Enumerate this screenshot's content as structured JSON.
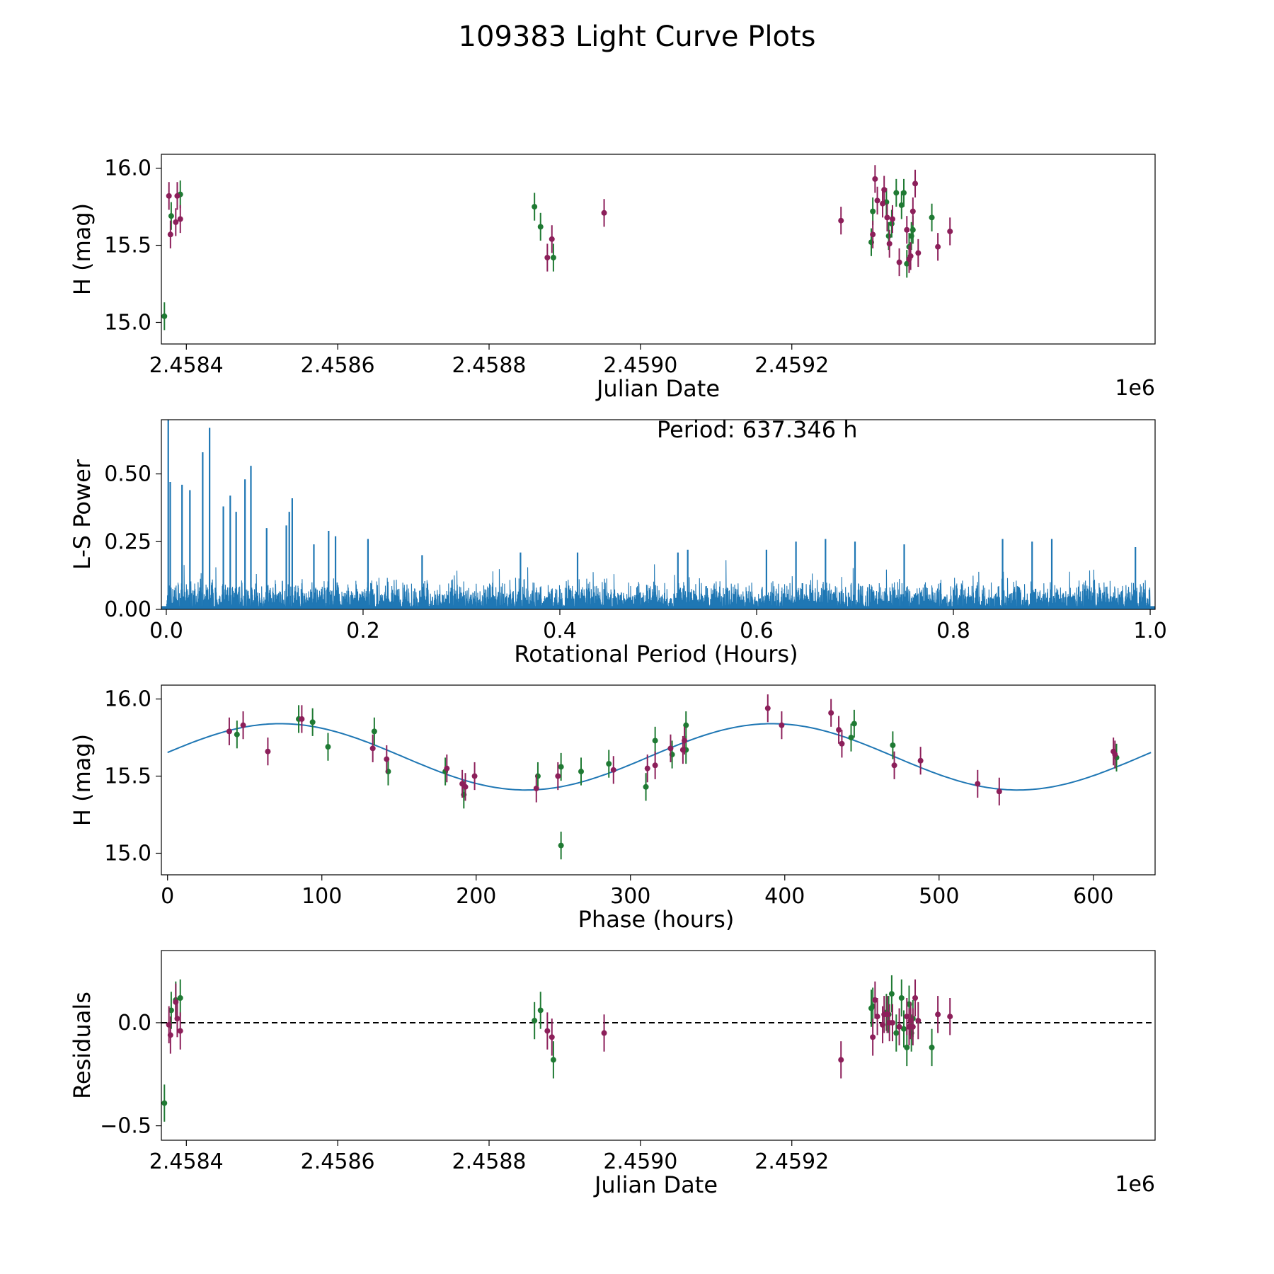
{
  "figure_title": "109383 Light Curve Plots",
  "colors": {
    "green": "#1f7a33",
    "magenta": "#8c1f5a",
    "blue": "#1f77b4",
    "axis": "#000000"
  },
  "chart_data": [
    {
      "id": "raw",
      "type": "scatter",
      "title": "",
      "xlabel": "Julian Date",
      "ylabel": "H (mag)",
      "offset_text": "1e6",
      "xlim": [
        2458367,
        2459680
      ],
      "ylim": [
        14.86,
        16.09
      ],
      "xticks": [
        2458400,
        2458600,
        2458800,
        2459000,
        2459200
      ],
      "xtick_labels": [
        "2.4584",
        "2.4586",
        "2.4588",
        "2.4590",
        "2.4592"
      ],
      "yticks": [
        15.0,
        15.5,
        16.0
      ],
      "ytick_labels": [
        "15.0",
        "15.5",
        "16.0"
      ],
      "error_bar": 0.17,
      "series": [
        {
          "name": "green",
          "color": "#1f7a33",
          "points": [
            [
              2458371,
              15.04
            ],
            [
              2458380,
              15.69
            ],
            [
              2458392,
              15.83
            ],
            [
              2458860,
              15.75
            ],
            [
              2458868,
              15.62
            ],
            [
              2458885,
              15.42
            ],
            [
              2459305,
              15.52
            ],
            [
              2459307,
              15.72
            ],
            [
              2459325,
              15.78
            ],
            [
              2459328,
              15.56
            ],
            [
              2459332,
              15.64
            ],
            [
              2459338,
              15.84
            ],
            [
              2459345,
              15.76
            ],
            [
              2459348,
              15.84
            ],
            [
              2459352,
              15.38
            ],
            [
              2459355,
              15.49
            ],
            [
              2459358,
              15.56
            ],
            [
              2459360,
              15.6
            ],
            [
              2459385,
              15.68
            ]
          ]
        },
        {
          "name": "magenta",
          "color": "#8c1f5a",
          "points": [
            [
              2458377,
              15.82
            ],
            [
              2458379,
              15.57
            ],
            [
              2458386,
              15.65
            ],
            [
              2458388,
              15.82
            ],
            [
              2458392,
              15.67
            ],
            [
              2458877,
              15.42
            ],
            [
              2458883,
              15.54
            ],
            [
              2458952,
              15.71
            ],
            [
              2459265,
              15.66
            ],
            [
              2459307,
              15.57
            ],
            [
              2459310,
              15.93
            ],
            [
              2459313,
              15.79
            ],
            [
              2459320,
              15.77
            ],
            [
              2459322,
              15.86
            ],
            [
              2459326,
              15.68
            ],
            [
              2459329,
              15.51
            ],
            [
              2459333,
              15.67
            ],
            [
              2459342,
              15.39
            ],
            [
              2459352,
              15.6
            ],
            [
              2459355,
              15.41
            ],
            [
              2459357,
              15.43
            ],
            [
              2459360,
              15.72
            ],
            [
              2459363,
              15.9
            ],
            [
              2459367,
              15.45
            ],
            [
              2459393,
              15.49
            ],
            [
              2459409,
              15.59
            ]
          ]
        }
      ]
    },
    {
      "id": "periodogram",
      "type": "line",
      "title": "",
      "xlabel": "Rotational Period (Hours)",
      "ylabel": "L-S Power",
      "annotation": "Period: 637.346 h",
      "xlim": [
        -0.005,
        1.005
      ],
      "ylim": [
        0.0,
        0.7
      ],
      "xticks": [
        0.0,
        0.2,
        0.4,
        0.6,
        0.8,
        1.0
      ],
      "xtick_labels": [
        "0.0",
        "0.2",
        "0.4",
        "0.6",
        "0.8",
        "1.0"
      ],
      "yticks": [
        0.0,
        0.25,
        0.5
      ],
      "ytick_labels": [
        "0.00",
        "0.25",
        "0.50"
      ],
      "color": "#1f77b4",
      "peaks": [
        [
          0.002,
          0.7
        ],
        [
          0.004,
          0.47
        ],
        [
          0.016,
          0.46
        ],
        [
          0.024,
          0.44
        ],
        [
          0.037,
          0.58
        ],
        [
          0.044,
          0.67
        ],
        [
          0.058,
          0.38
        ],
        [
          0.065,
          0.42
        ],
        [
          0.071,
          0.36
        ],
        [
          0.08,
          0.48
        ],
        [
          0.086,
          0.53
        ],
        [
          0.102,
          0.3
        ],
        [
          0.122,
          0.31
        ],
        [
          0.125,
          0.36
        ],
        [
          0.128,
          0.41
        ],
        [
          0.15,
          0.24
        ],
        [
          0.165,
          0.29
        ],
        [
          0.172,
          0.27
        ],
        [
          0.205,
          0.26
        ],
        [
          0.26,
          0.2
        ],
        [
          0.36,
          0.21
        ],
        [
          0.418,
          0.21
        ],
        [
          0.52,
          0.21
        ],
        [
          0.53,
          0.22
        ],
        [
          0.61,
          0.22
        ],
        [
          0.64,
          0.25
        ],
        [
          0.67,
          0.26
        ],
        [
          0.7,
          0.25
        ],
        [
          0.75,
          0.24
        ],
        [
          0.85,
          0.26
        ],
        [
          0.88,
          0.25
        ],
        [
          0.9,
          0.26
        ],
        [
          0.985,
          0.23
        ]
      ],
      "noise_level": 0.12
    },
    {
      "id": "phase",
      "type": "scatter",
      "title": "",
      "xlabel": "Phase (hours)",
      "ylabel": "H (mag)",
      "xlim": [
        -4,
        640
      ],
      "ylim": [
        14.86,
        16.09
      ],
      "xticks": [
        0,
        100,
        200,
        300,
        400,
        500,
        600
      ],
      "xtick_labels": [
        "0",
        "100",
        "200",
        "300",
        "400",
        "500",
        "600"
      ],
      "yticks": [
        15.0,
        15.5,
        16.0
      ],
      "ytick_labels": [
        "15.0",
        "15.5",
        "16.0"
      ],
      "error_bar": 0.17,
      "fit": {
        "mean": 15.625,
        "amplitude": 0.215,
        "period": 318.673,
        "peak_phase": 73,
        "x_range": [
          0,
          637.346
        ],
        "color": "#1f77b4"
      },
      "series": [
        {
          "name": "green",
          "color": "#1f7a33",
          "points": [
            [
              45,
              15.77
            ],
            [
              85,
              15.87
            ],
            [
              94,
              15.85
            ],
            [
              104,
              15.69
            ],
            [
              134,
              15.79
            ],
            [
              143,
              15.53
            ],
            [
              180,
              15.53
            ],
            [
              192,
              15.38
            ],
            [
              240,
              15.5
            ],
            [
              255,
              15.05
            ],
            [
              255,
              15.56
            ],
            [
              268,
              15.53
            ],
            [
              286,
              15.58
            ],
            [
              310,
              15.43
            ],
            [
              316,
              15.73
            ],
            [
              327,
              15.64
            ],
            [
              336,
              15.83
            ],
            [
              336,
              15.67
            ],
            [
              443,
              15.75
            ],
            [
              445,
              15.84
            ],
            [
              470,
              15.7
            ],
            [
              615,
              15.62
            ]
          ]
        },
        {
          "name": "magenta",
          "color": "#8c1f5a",
          "points": [
            [
              40,
              15.79
            ],
            [
              49,
              15.83
            ],
            [
              65,
              15.66
            ],
            [
              87,
              15.87
            ],
            [
              133,
              15.68
            ],
            [
              142,
              15.61
            ],
            [
              181,
              15.55
            ],
            [
              191,
              15.45
            ],
            [
              193,
              15.43
            ],
            [
              199,
              15.5
            ],
            [
              239,
              15.42
            ],
            [
              253,
              15.5
            ],
            [
              289,
              15.54
            ],
            [
              311,
              15.55
            ],
            [
              316,
              15.57
            ],
            [
              326,
              15.68
            ],
            [
              334,
              15.67
            ],
            [
              335,
              15.73
            ],
            [
              389,
              15.94
            ],
            [
              398,
              15.83
            ],
            [
              430,
              15.91
            ],
            [
              435,
              15.8
            ],
            [
              437,
              15.71
            ],
            [
              471,
              15.57
            ],
            [
              488,
              15.6
            ],
            [
              525,
              15.45
            ],
            [
              539,
              15.4
            ],
            [
              613,
              15.66
            ],
            [
              614,
              15.64
            ]
          ]
        }
      ]
    },
    {
      "id": "residuals",
      "type": "scatter",
      "title": "",
      "xlabel": "Julian Date",
      "ylabel": "Residuals",
      "offset_text": "1e6",
      "xlim": [
        2458367,
        2459680
      ],
      "ylim": [
        -0.57,
        0.35
      ],
      "xticks": [
        2458400,
        2458600,
        2458800,
        2459000,
        2459200
      ],
      "xtick_labels": [
        "2.4584",
        "2.4586",
        "2.4588",
        "2.4590",
        "2.4592"
      ],
      "yticks": [
        -0.5,
        0.0
      ],
      "ytick_labels": [
        "−0.5",
        "0.0"
      ],
      "error_bar": 0.17,
      "zero_line": 0.0,
      "series": [
        {
          "name": "green",
          "color": "#1f7a33",
          "points": [
            [
              2458371,
              -0.39
            ],
            [
              2458380,
              0.06
            ],
            [
              2458386,
              0.11
            ],
            [
              2458392,
              0.12
            ],
            [
              2458860,
              0.01
            ],
            [
              2458868,
              0.06
            ],
            [
              2458885,
              -0.18
            ],
            [
              2459305,
              0.07
            ],
            [
              2459307,
              0.08
            ],
            [
              2459325,
              0.05
            ],
            [
              2459328,
              0.04
            ],
            [
              2459332,
              0.14
            ],
            [
              2459338,
              -0.05
            ],
            [
              2459345,
              0.12
            ],
            [
              2459348,
              -0.03
            ],
            [
              2459352,
              -0.12
            ],
            [
              2459355,
              0.09
            ],
            [
              2459358,
              -0.05
            ],
            [
              2459360,
              0.02
            ],
            [
              2459385,
              -0.12
            ]
          ]
        },
        {
          "name": "magenta",
          "color": "#8c1f5a",
          "points": [
            [
              2458377,
              -0.01
            ],
            [
              2458379,
              -0.06
            ],
            [
              2458386,
              0.1
            ],
            [
              2458388,
              0.02
            ],
            [
              2458392,
              -0.04
            ],
            [
              2458877,
              -0.04
            ],
            [
              2458883,
              -0.07
            ],
            [
              2458952,
              -0.05
            ],
            [
              2459265,
              -0.18
            ],
            [
              2459307,
              -0.07
            ],
            [
              2459310,
              0.11
            ],
            [
              2459313,
              0.03
            ],
            [
              2459320,
              -0.01
            ],
            [
              2459322,
              0.04
            ],
            [
              2459326,
              0.04
            ],
            [
              2459329,
              0.0
            ],
            [
              2459333,
              0.0
            ],
            [
              2459342,
              -0.02
            ],
            [
              2459352,
              0.03
            ],
            [
              2459355,
              -0.02
            ],
            [
              2459357,
              0.01
            ],
            [
              2459360,
              -0.02
            ],
            [
              2459363,
              0.12
            ],
            [
              2459367,
              0.01
            ],
            [
              2459393,
              0.04
            ],
            [
              2459409,
              0.03
            ]
          ]
        }
      ]
    }
  ]
}
